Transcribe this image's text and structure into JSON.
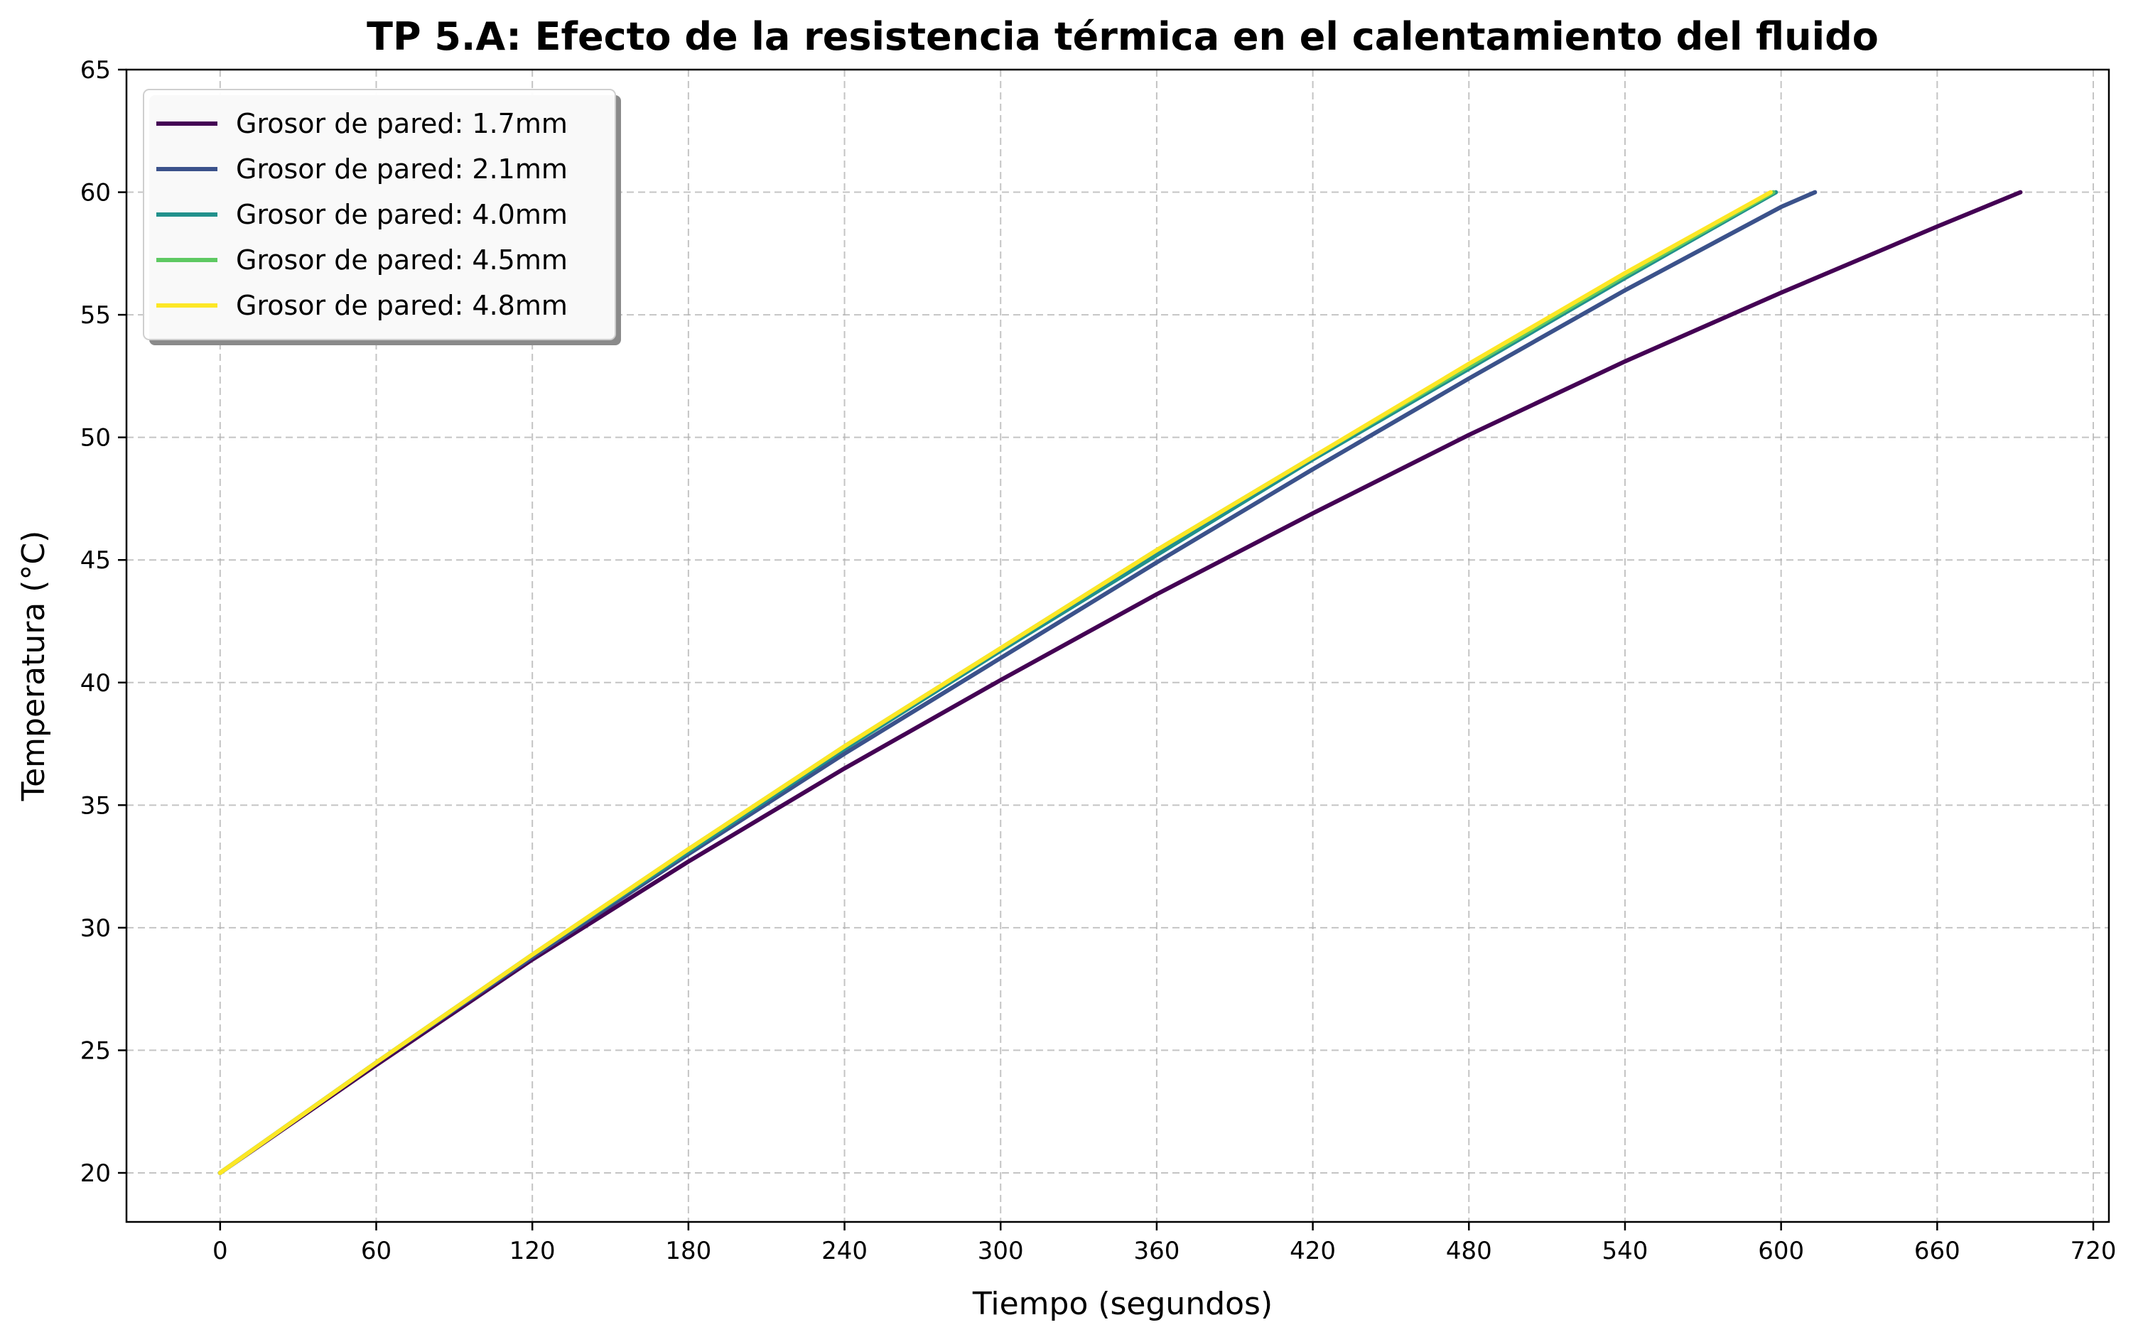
{
  "chart_data": {
    "type": "line",
    "title": "TP 5.A: Efecto de la resistencia térmica en el calentamiento del fluido",
    "xlabel": "Tiempo (segundos)",
    "ylabel": "Temperatura (°C)",
    "xlim": [
      -36,
      726
    ],
    "ylim": [
      18,
      65
    ],
    "xticks": [
      0,
      60,
      120,
      180,
      240,
      300,
      360,
      420,
      480,
      540,
      600,
      660,
      720
    ],
    "yticks": [
      20,
      25,
      30,
      35,
      40,
      45,
      50,
      55,
      60,
      65
    ],
    "grid": true,
    "legend_position": "top-left",
    "series": [
      {
        "name": "Grosor de pared: 1.7mm",
        "color": "#440154",
        "x": [
          0,
          60,
          120,
          180,
          240,
          300,
          360,
          420,
          480,
          540,
          600,
          660,
          692
        ],
        "y": [
          20,
          24.4,
          28.7,
          32.7,
          36.5,
          40.1,
          43.6,
          46.9,
          50.1,
          53.1,
          55.9,
          58.6,
          60.0
        ]
      },
      {
        "name": "Grosor de pared: 2.1mm",
        "color": "#3b528b",
        "x": [
          0,
          60,
          120,
          180,
          240,
          300,
          360,
          420,
          480,
          540,
          600,
          613
        ],
        "y": [
          20,
          24.5,
          28.8,
          33.0,
          37.1,
          41.0,
          44.9,
          48.7,
          52.4,
          56.0,
          59.4,
          60.0
        ]
      },
      {
        "name": "Grosor de pared: 4.0mm",
        "color": "#21918c",
        "x": [
          0,
          60,
          120,
          180,
          240,
          300,
          360,
          420,
          480,
          540,
          598
        ],
        "y": [
          20,
          24.5,
          28.9,
          33.1,
          37.3,
          41.3,
          45.2,
          49.1,
          52.8,
          56.5,
          60.0
        ]
      },
      {
        "name": "Grosor de pared: 4.5mm",
        "color": "#5ec962",
        "x": [
          0,
          60,
          120,
          180,
          240,
          300,
          360,
          420,
          480,
          540,
          597
        ],
        "y": [
          20,
          24.5,
          28.9,
          33.2,
          37.4,
          41.4,
          45.4,
          49.2,
          52.9,
          56.6,
          60.0
        ]
      },
      {
        "name": "Grosor de pared: 4.8mm",
        "color": "#fde725",
        "x": [
          0,
          60,
          120,
          180,
          240,
          300,
          360,
          420,
          480,
          540,
          596
        ],
        "y": [
          20,
          24.5,
          28.9,
          33.2,
          37.4,
          41.4,
          45.4,
          49.2,
          53.0,
          56.7,
          60.0
        ]
      }
    ]
  }
}
